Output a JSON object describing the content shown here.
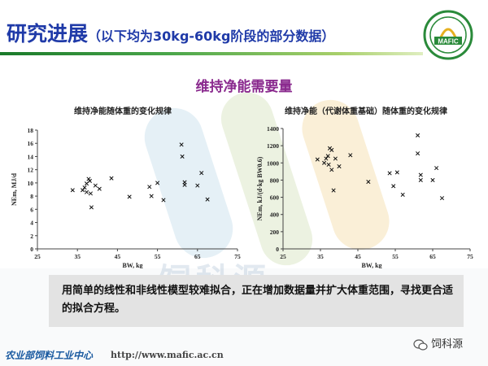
{
  "slide": {
    "title_main": "研究进展",
    "title_paren_open": "（以下均为",
    "title_paren_bold": "30kg-60kg",
    "title_paren_close": "阶段的部分数据）",
    "subtitle": "维持净能需要量",
    "logo_text": "MAFIC",
    "note": "用简单的线性和非线性模型较难拟合，正在增加数据量并扩大体重范围，寻找更合适的拟合方程。",
    "footer_org": "农业部饲料工业中心",
    "footer_url": "http://www.mafic.ac.cn",
    "wechat_label": "饲科源",
    "watermark": "饲科源",
    "colors": {
      "title": "#1f3aa8",
      "subtitle": "#8a2a8e",
      "rule": "#2e8b3a",
      "note_bg": "#e3e3e3"
    }
  },
  "chart_data": [
    {
      "type": "scatter",
      "title": "维持净能随体重的变化规律",
      "xlabel": "BW, kg",
      "ylabel": "NEm, MJ/d",
      "xlim": [
        25,
        75
      ],
      "ylim": [
        0,
        18
      ],
      "xticks": [
        25,
        35,
        45,
        55,
        65,
        75
      ],
      "yticks": [
        0,
        2,
        4,
        6,
        8,
        10,
        12,
        14,
        16,
        18
      ],
      "grid": false,
      "marker": "x",
      "points": [
        [
          33.8,
          8.9
        ],
        [
          36.3,
          8.9
        ],
        [
          36.8,
          9.3
        ],
        [
          37.3,
          8.6
        ],
        [
          37.3,
          9.9
        ],
        [
          37.8,
          10.6
        ],
        [
          38.1,
          10.3
        ],
        [
          38.3,
          8.4
        ],
        [
          38.5,
          6.3
        ],
        [
          39.5,
          9.6
        ],
        [
          40.5,
          9.1
        ],
        [
          43.5,
          10.7
        ],
        [
          48.0,
          7.9
        ],
        [
          53.0,
          9.4
        ],
        [
          53.5,
          8.0
        ],
        [
          55.0,
          10.0
        ],
        [
          56.5,
          7.4
        ],
        [
          61.0,
          15.8
        ],
        [
          61.2,
          14.0
        ],
        [
          61.8,
          10.1
        ],
        [
          61.8,
          9.7
        ],
        [
          65.0,
          9.6
        ],
        [
          66.0,
          11.5
        ],
        [
          67.5,
          7.5
        ]
      ]
    },
    {
      "type": "scatter",
      "title": "维持净能（代谢体重基础）随体重的变化规律",
      "xlabel": "BW, kg",
      "ylabel": "NEm, kJ/(d·kg BW0.6)",
      "xlim": [
        25,
        75
      ],
      "ylim": [
        0,
        1400
      ],
      "xticks": [
        25,
        35,
        45,
        55,
        65,
        75
      ],
      "yticks": [
        0,
        200,
        400,
        600,
        800,
        1000,
        1200,
        1400
      ],
      "grid": false,
      "marker": "x",
      "points": [
        [
          34.2,
          1040
        ],
        [
          36.0,
          1000
        ],
        [
          36.5,
          1050
        ],
        [
          37.0,
          1080
        ],
        [
          37.2,
          980
        ],
        [
          37.5,
          1170
        ],
        [
          38.0,
          1150
        ],
        [
          38.0,
          920
        ],
        [
          38.5,
          680
        ],
        [
          39.0,
          1050
        ],
        [
          40.0,
          960
        ],
        [
          43.0,
          1090
        ],
        [
          47.8,
          780
        ],
        [
          53.5,
          880
        ],
        [
          54.5,
          730
        ],
        [
          55.5,
          890
        ],
        [
          57.0,
          630
        ],
        [
          61.0,
          1320
        ],
        [
          61.0,
          1110
        ],
        [
          61.8,
          860
        ],
        [
          61.8,
          800
        ],
        [
          65.0,
          800
        ],
        [
          66.0,
          940
        ],
        [
          67.5,
          590
        ]
      ]
    }
  ]
}
